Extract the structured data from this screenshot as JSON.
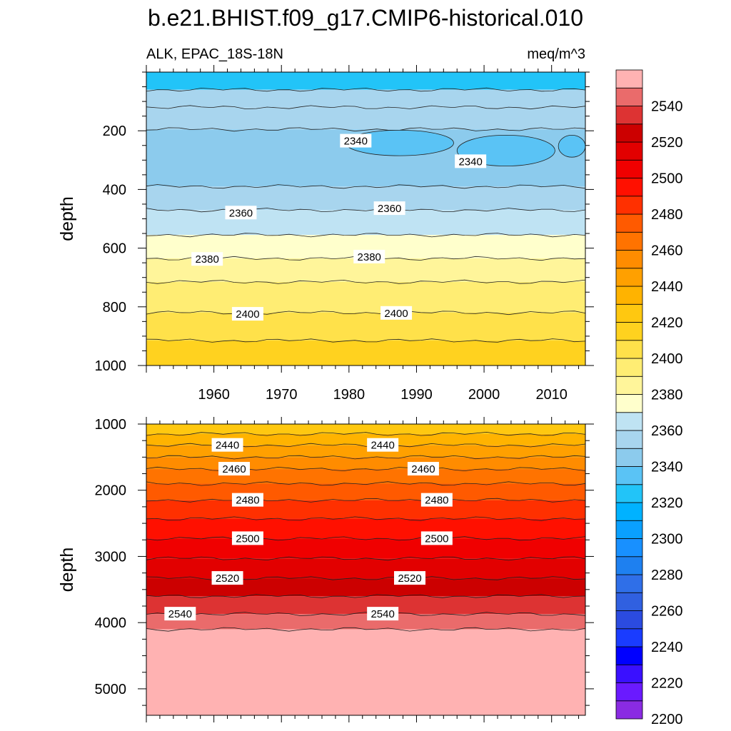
{
  "chart_data": {
    "type": "heatmap",
    "title": "b.e21.BHIST.f09_g17.CMIP6-historical.010",
    "variable_label": "ALK, EPAC_18S-18N",
    "units_label": "meq/m^3",
    "x_range": [
      1950,
      2015
    ],
    "x_ticks": [
      1960,
      1970,
      1980,
      1990,
      2000,
      2010
    ],
    "x_tick_labels": [
      "1960",
      "1970",
      "1980",
      "1990",
      "2000",
      "2010"
    ],
    "colorbar": {
      "levels": [
        2200,
        2210,
        2220,
        2230,
        2240,
        2250,
        2260,
        2270,
        2280,
        2290,
        2300,
        2310,
        2320,
        2330,
        2340,
        2350,
        2360,
        2370,
        2380,
        2390,
        2400,
        2410,
        2420,
        2430,
        2440,
        2450,
        2460,
        2470,
        2480,
        2490,
        2500,
        2510,
        2520,
        2530,
        2540,
        2550
      ],
      "colors": [
        "#8a2be2",
        "#6a1aff",
        "#3a10ff",
        "#0000ff",
        "#1a3cff",
        "#2b4be0",
        "#3060e0",
        "#2f6fe8",
        "#1e80f0",
        "#1890ff",
        "#0aa0ff",
        "#00b2ff",
        "#22c4f8",
        "#5ac3f5",
        "#8ccbed",
        "#a8d5ee",
        "#bfe3f3",
        "#ffffcc",
        "#fff59a",
        "#ffed73",
        "#ffe14a",
        "#ffd21f",
        "#ffc810",
        "#ffb300",
        "#ffa000",
        "#ff8c00",
        "#ff7300",
        "#ff5a00",
        "#ff3000",
        "#ff1000",
        "#f00000",
        "#e20000",
        "#cc0000",
        "#dd3333",
        "#ea6b6b",
        "#ffb2b2"
      ],
      "tick_labels": [
        "2200",
        "2220",
        "2240",
        "2260",
        "2280",
        "2300",
        "2320",
        "2340",
        "2360",
        "2380",
        "2400",
        "2420",
        "2440",
        "2460",
        "2480",
        "2500",
        "2520",
        "2540"
      ]
    },
    "panels": [
      {
        "name": "upper",
        "ylabel": "depth",
        "ylim": [
          0,
          1000
        ],
        "y_ticks": [
          200,
          400,
          600,
          800,
          1000
        ],
        "y_tick_labels": [
          "200",
          "400",
          "600",
          "800",
          "1000"
        ],
        "bands": [
          {
            "top": 0,
            "bottom": 60,
            "value": 2320
          },
          {
            "top": 60,
            "bottom": 120,
            "value": 2350
          },
          {
            "top": 120,
            "bottom": 195,
            "value": 2350
          },
          {
            "top": 195,
            "bottom": 390,
            "value": 2340
          },
          {
            "top": 390,
            "bottom": 470,
            "value": 2350
          },
          {
            "top": 470,
            "bottom": 555,
            "value": 2360
          },
          {
            "top": 555,
            "bottom": 635,
            "value": 2370
          },
          {
            "top": 635,
            "bottom": 715,
            "value": 2380
          },
          {
            "top": 715,
            "bottom": 820,
            "value": 2390
          },
          {
            "top": 820,
            "bottom": 915,
            "value": 2400
          },
          {
            "top": 915,
            "bottom": 1000,
            "value": 2410
          }
        ],
        "patches": [
          {
            "x0": 1979.5,
            "x1": 1995.5,
            "top": 198,
            "bottom": 285,
            "value": 2330
          },
          {
            "x0": 1996,
            "x1": 2010.5,
            "top": 215,
            "bottom": 320,
            "value": 2330
          },
          {
            "x0": 2011,
            "x1": 2015,
            "top": 215,
            "bottom": 290,
            "value": 2330
          }
        ],
        "contour_labels": [
          {
            "text": "2340",
            "x": 1981,
            "y": 235
          },
          {
            "text": "2340",
            "x": 1998,
            "y": 305
          },
          {
            "text": "2360",
            "x": 1964,
            "y": 480
          },
          {
            "text": "2360",
            "x": 1986,
            "y": 465
          },
          {
            "text": "2380",
            "x": 1959,
            "y": 638
          },
          {
            "text": "2380",
            "x": 1983,
            "y": 630
          },
          {
            "text": "2400",
            "x": 1965,
            "y": 825
          },
          {
            "text": "2400",
            "x": 1987,
            "y": 822
          }
        ]
      },
      {
        "name": "lower",
        "ylabel": "depth",
        "ylim": [
          1000,
          5400
        ],
        "y_ticks": [
          1000,
          2000,
          3000,
          4000,
          5000
        ],
        "y_tick_labels": [
          "1000",
          "2000",
          "3000",
          "4000",
          "5000"
        ],
        "bands": [
          {
            "top": 1000,
            "bottom": 1150,
            "value": 2420
          },
          {
            "top": 1150,
            "bottom": 1320,
            "value": 2430
          },
          {
            "top": 1320,
            "bottom": 1500,
            "value": 2440
          },
          {
            "top": 1500,
            "bottom": 1680,
            "value": 2450
          },
          {
            "top": 1680,
            "bottom": 1900,
            "value": 2460
          },
          {
            "top": 1900,
            "bottom": 2150,
            "value": 2470
          },
          {
            "top": 2150,
            "bottom": 2430,
            "value": 2480
          },
          {
            "top": 2430,
            "bottom": 2730,
            "value": 2490
          },
          {
            "top": 2730,
            "bottom": 3030,
            "value": 2500
          },
          {
            "top": 3030,
            "bottom": 3330,
            "value": 2510
          },
          {
            "top": 3330,
            "bottom": 3600,
            "value": 2520
          },
          {
            "top": 3600,
            "bottom": 3870,
            "value": 2530
          },
          {
            "top": 3870,
            "bottom": 4100,
            "value": 2540
          },
          {
            "top": 4100,
            "bottom": 5400,
            "value": 2550
          }
        ],
        "contour_labels": [
          {
            "text": "2440",
            "x": 1962,
            "y": 1320
          },
          {
            "text": "2440",
            "x": 1985,
            "y": 1320
          },
          {
            "text": "2460",
            "x": 1963,
            "y": 1680
          },
          {
            "text": "2460",
            "x": 1991,
            "y": 1680
          },
          {
            "text": "2480",
            "x": 1965,
            "y": 2150
          },
          {
            "text": "2480",
            "x": 1993,
            "y": 2150
          },
          {
            "text": "2500",
            "x": 1965,
            "y": 2730
          },
          {
            "text": "2500",
            "x": 1993,
            "y": 2730
          },
          {
            "text": "2520",
            "x": 1962,
            "y": 3330
          },
          {
            "text": "2520",
            "x": 1989,
            "y": 3330
          },
          {
            "text": "2540",
            "x": 1955,
            "y": 3870
          },
          {
            "text": "2540",
            "x": 1985,
            "y": 3870
          }
        ]
      }
    ]
  }
}
